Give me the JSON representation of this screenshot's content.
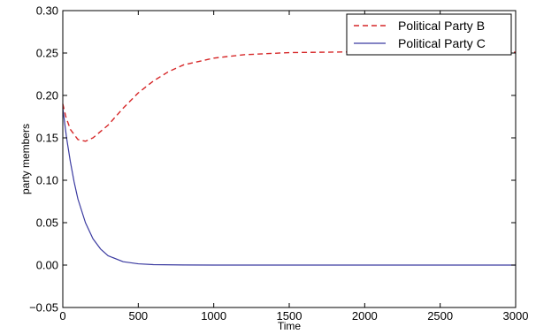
{
  "chart_data": {
    "type": "line",
    "title": "",
    "xlabel": "Time",
    "ylabel": "party members",
    "xlim": [
      0,
      3000
    ],
    "ylim": [
      -0.05,
      0.3
    ],
    "x_ticks": [
      0,
      500,
      1000,
      1500,
      2000,
      2500,
      3000
    ],
    "x_tick_labels": [
      "0",
      "500",
      "1000",
      "1500",
      "2000",
      "2500",
      "3000"
    ],
    "y_ticks": [
      -0.05,
      0.0,
      0.05,
      0.1,
      0.15,
      0.2,
      0.25,
      0.3
    ],
    "y_tick_labels": [
      "−0.05",
      "0.00",
      "0.05",
      "0.10",
      "0.15",
      "0.20",
      "0.25",
      "0.30"
    ],
    "grid": false,
    "legend_position": "top-right",
    "series": [
      {
        "name": "Political Party B",
        "color": "#d62728",
        "style": "dashed",
        "points": [
          [
            0,
            0.19
          ],
          [
            20,
            0.175
          ],
          [
            50,
            0.16
          ],
          [
            100,
            0.148
          ],
          [
            150,
            0.146
          ],
          [
            200,
            0.15
          ],
          [
            300,
            0.165
          ],
          [
            400,
            0.185
          ],
          [
            500,
            0.203
          ],
          [
            600,
            0.217
          ],
          [
            700,
            0.228
          ],
          [
            800,
            0.236
          ],
          [
            1000,
            0.244
          ],
          [
            1200,
            0.248
          ],
          [
            1500,
            0.2505
          ],
          [
            2000,
            0.2515
          ],
          [
            2500,
            0.2515
          ],
          [
            3000,
            0.251
          ]
        ]
      },
      {
        "name": "Political Party C",
        "color": "#3a3aa0",
        "style": "solid",
        "points": [
          [
            0,
            0.185
          ],
          [
            25,
            0.15
          ],
          [
            50,
            0.122
          ],
          [
            75,
            0.098
          ],
          [
            100,
            0.078
          ],
          [
            150,
            0.05
          ],
          [
            200,
            0.031
          ],
          [
            250,
            0.019
          ],
          [
            300,
            0.011
          ],
          [
            400,
            0.004
          ],
          [
            500,
            0.0015
          ],
          [
            600,
            0.0005
          ],
          [
            800,
            0.0001
          ],
          [
            1000,
            0.0
          ],
          [
            3000,
            0.0
          ]
        ]
      }
    ]
  }
}
